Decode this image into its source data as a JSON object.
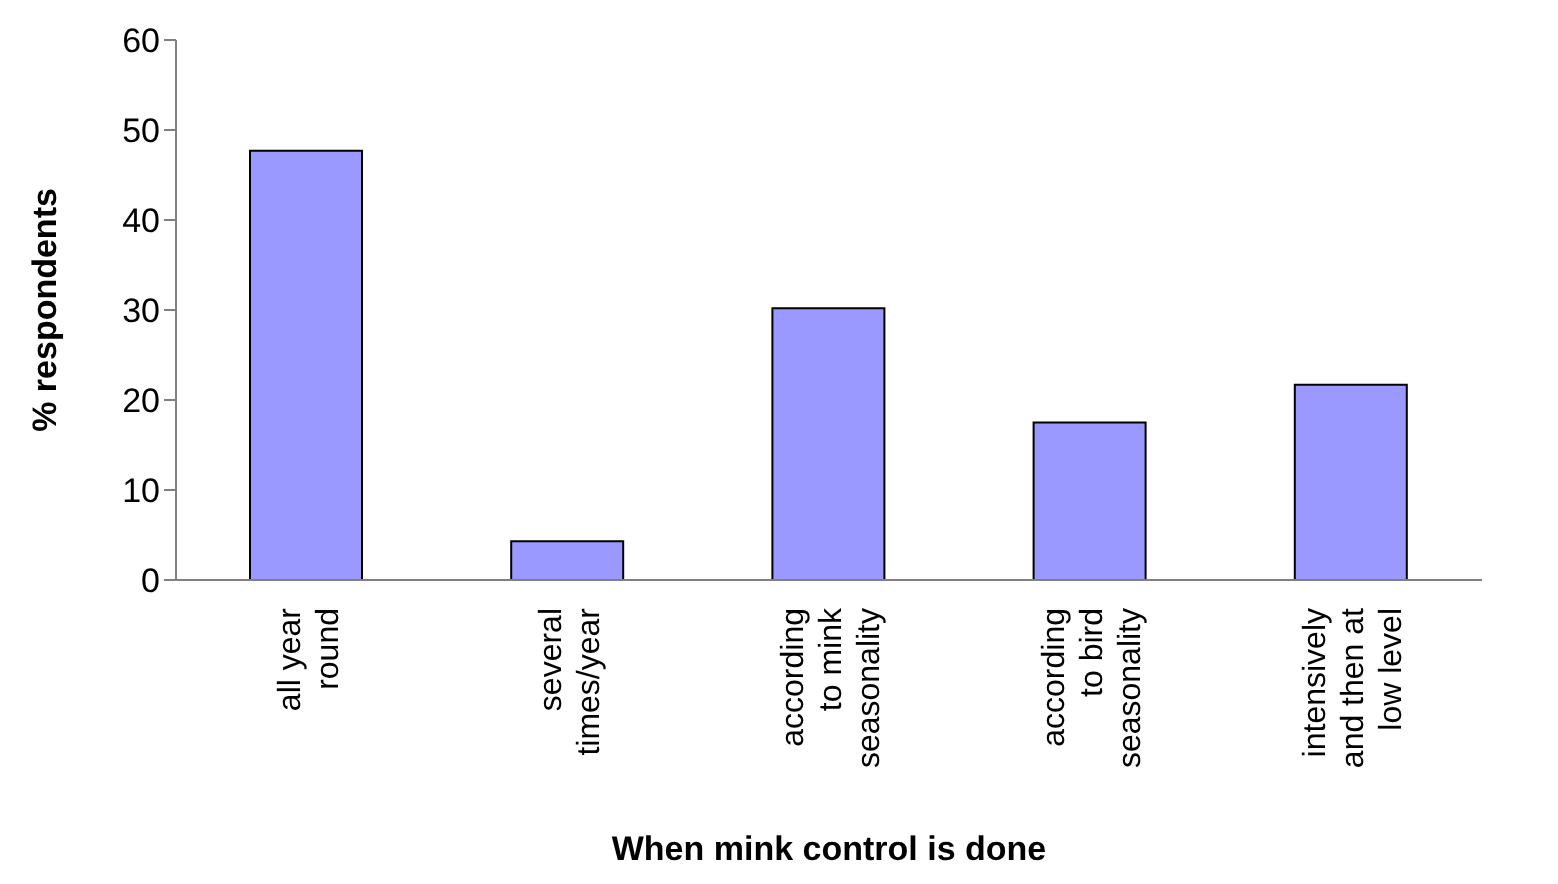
{
  "chart_data": {
    "type": "bar",
    "xlabel": "When mink control is done",
    "ylabel": "% respondents",
    "categories": [
      "all year round",
      "several times/year",
      "according to mink seasonality",
      "according to bird seasonality",
      "intensively and then at low level"
    ],
    "values": [
      47.7,
      4.3,
      30.2,
      17.5,
      21.7
    ],
    "color": "#9999ff",
    "ylim": [
      0,
      60
    ],
    "yticks": [
      0,
      10,
      20,
      30,
      40,
      50,
      60
    ],
    "grid": false,
    "legend": false
  }
}
